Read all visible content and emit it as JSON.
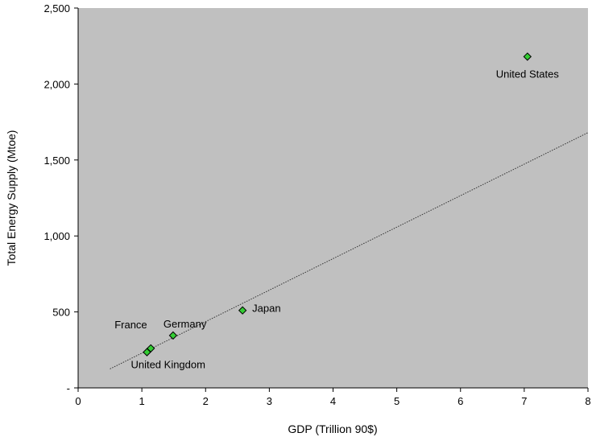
{
  "chart_data": {
    "type": "scatter",
    "title": "",
    "xlabel": "GDP (Trillion 90$)",
    "ylabel": "Total Energy Supply (Mtoe)",
    "xlim": [
      0,
      8
    ],
    "ylim": [
      0,
      2500
    ],
    "x_ticks": [
      0,
      1,
      2,
      3,
      4,
      5,
      6,
      7,
      8
    ],
    "x_tick_labels": [
      "0",
      "1",
      "2",
      "3",
      "4",
      "5",
      "6",
      "7",
      "8"
    ],
    "y_ticks": [
      0,
      500,
      1000,
      1500,
      2000,
      2500
    ],
    "y_tick_labels": [
      "-",
      "500",
      "1,000",
      "1,500",
      "2,000",
      "2,500"
    ],
    "grid": false,
    "plot_background": "#c0c0c0",
    "marker": "diamond",
    "marker_color": "#33cc33",
    "points": [
      {
        "label": "United States",
        "x": 7.05,
        "y": 2180
      },
      {
        "label": "Japan",
        "x": 2.58,
        "y": 510
      },
      {
        "label": "Germany",
        "x": 1.49,
        "y": 345
      },
      {
        "label": "France",
        "x": 1.14,
        "y": 260
      },
      {
        "label": "United Kingdom",
        "x": 1.08,
        "y": 235
      }
    ],
    "trendline": {
      "style": "dotted",
      "color": "#333333",
      "x": [
        0.5,
        8
      ],
      "y": [
        125,
        1680
      ]
    }
  }
}
